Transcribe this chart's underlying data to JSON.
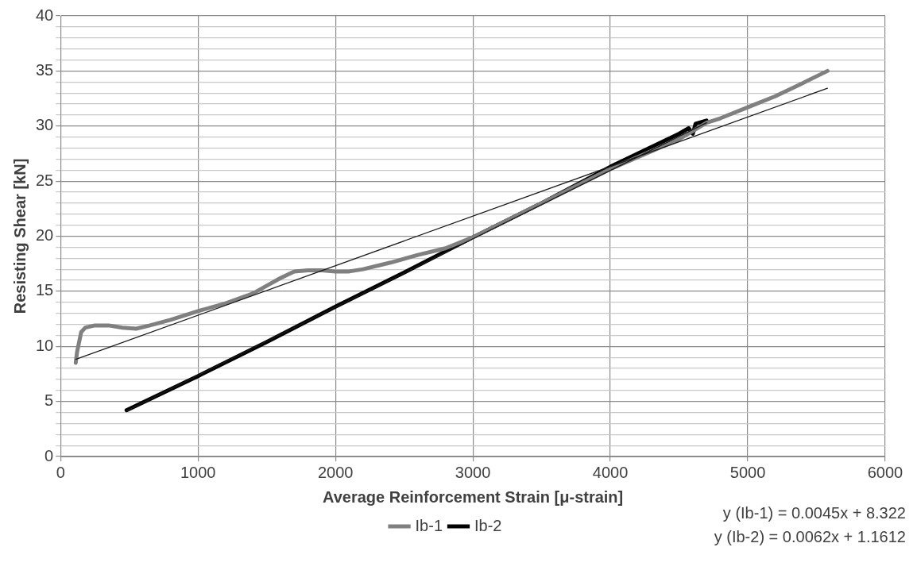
{
  "chart_data": {
    "type": "line",
    "xlabel": "Average Reinforcement Strain [μ-strain]",
    "ylabel": "Resisting Shear [kN]",
    "xlim": [
      0,
      6000
    ],
    "xticks": [
      0,
      1000,
      2000,
      3000,
      4000,
      5000,
      6000
    ],
    "ylim": [
      0,
      40
    ],
    "yticks": [
      0,
      {
        "value": 1,
        "label": null
      },
      {
        "value": 2,
        "label": null
      },
      {
        "value": 3,
        "label": null
      },
      {
        "value": 4,
        "label": null
      },
      5,
      {
        "value": 6,
        "label": null
      },
      {
        "value": 7,
        "label": null
      },
      {
        "value": 8,
        "label": null
      },
      {
        "value": 9,
        "label": null
      },
      10,
      {
        "value": 11,
        "label": null
      },
      {
        "value": 12,
        "label": null
      },
      {
        "value": 13,
        "label": null
      },
      {
        "value": 14,
        "label": null
      },
      15,
      {
        "value": 16,
        "label": null
      },
      {
        "value": 17,
        "label": null
      },
      {
        "value": 18,
        "label": null
      },
      {
        "value": 19,
        "label": null
      },
      20,
      {
        "value": 21,
        "label": null
      },
      {
        "value": 22,
        "label": null
      },
      {
        "value": 23,
        "label": null
      },
      {
        "value": 24,
        "label": null
      },
      25,
      {
        "value": 26,
        "label": null
      },
      {
        "value": 27,
        "label": null
      },
      {
        "value": 28,
        "label": null
      },
      {
        "value": 29,
        "label": null
      },
      30,
      {
        "value": 31,
        "label": null
      },
      {
        "value": 32,
        "label": null
      },
      {
        "value": 33,
        "label": null
      },
      {
        "value": 34,
        "label": null
      },
      35,
      {
        "value": 36,
        "label": null
      },
      {
        "value": 37,
        "label": null
      },
      {
        "value": 38,
        "label": null
      },
      {
        "value": 39,
        "label": null
      },
      40
    ],
    "grid": true,
    "legend": "bottom",
    "marker": "none",
    "line_style": "solid",
    "annotations": [
      "y (Ib-1) = 0.0045x + 8.322",
      "y (Ib-2) = 0.0062x + 1.1612"
    ],
    "series": [
      {
        "name": "Ib-1",
        "color": "#808080",
        "x": [
          110,
          120,
          150,
          180,
          250,
          350,
          450,
          550,
          650,
          800,
          1000,
          1200,
          1400,
          1500,
          1600,
          1700,
          1800,
          1900,
          2000,
          2100,
          2200,
          2400,
          2600,
          2800,
          3000,
          3500,
          4000,
          4500,
          4700,
          4800,
          5000,
          5200,
          5400,
          5580
        ],
        "values": [
          8.5,
          9.5,
          11.3,
          11.7,
          11.9,
          11.9,
          11.7,
          11.6,
          11.9,
          12.4,
          13.2,
          13.9,
          14.8,
          15.5,
          16.2,
          16.8,
          16.9,
          16.9,
          16.8,
          16.8,
          17.0,
          17.6,
          18.3,
          18.9,
          19.9,
          23.0,
          26.1,
          28.8,
          30.3,
          30.7,
          31.7,
          32.7,
          33.9,
          35.0
        ]
      },
      {
        "name": "Ib-2",
        "color": "#000000",
        "x": [
          480,
          1000,
          1500,
          2000,
          2500,
          3000,
          3500,
          4000,
          4500,
          4570,
          4600,
          4620,
          4700
        ],
        "values": [
          4.2,
          7.3,
          10.4,
          13.6,
          16.7,
          19.9,
          23.0,
          26.3,
          29.3,
          29.8,
          29.3,
          30.2,
          30.5
        ]
      },
      {
        "type": "line",
        "color": "#1a1a1a",
        "x": [
          110,
          5580
        ],
        "values": [
          8.82,
          33.43
        ]
      },
      {
        "type": "line",
        "color": "#1a1a1a",
        "x": [
          480,
          4700
        ],
        "values": [
          4.14,
          30.3
        ]
      }
    ]
  }
}
